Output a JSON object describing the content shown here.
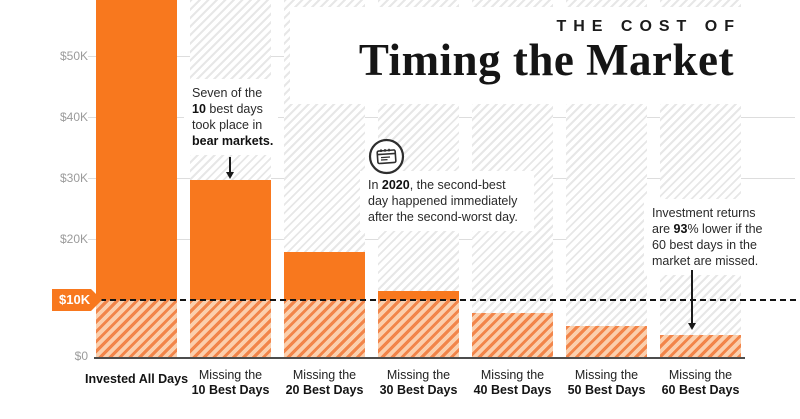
{
  "title": {
    "kicker": "THE COST OF",
    "main": "Timing the Market"
  },
  "chart_data": {
    "type": "bar",
    "title": "The Cost of Timing the Market",
    "categories": [
      "Invested All Days",
      "Missing the 10 Best Days",
      "Missing the 20 Best Days",
      "Missing the 30 Best Days",
      "Missing the 40 Best Days",
      "Missing the 50 Best Days",
      "Missing the 60 Best Days"
    ],
    "category_lines": [
      [
        "Invested All Days"
      ],
      [
        "Missing the",
        "10 Best Days"
      ],
      [
        "Missing the",
        "20 Best Days"
      ],
      [
        "Missing the",
        "30 Best Days"
      ],
      [
        "Missing the",
        "40 Best Days"
      ],
      [
        "Missing the",
        "50 Best Days"
      ],
      [
        "Missing the",
        "60 Best Days"
      ]
    ],
    "values": [
      65000,
      29700,
      17800,
      11500,
      7900,
      5700,
      4200
    ],
    "clipped_at_top": [
      true,
      false,
      false,
      false,
      false,
      false,
      false
    ],
    "ytick_values": [
      0,
      20000,
      30000,
      40000,
      50000
    ],
    "ytick_labels": [
      "$0",
      "$20K",
      "$30K",
      "$40K",
      "$50K"
    ],
    "ylim": [
      0,
      60000
    ],
    "baseline_value": 10000,
    "baseline_label": "$10K",
    "xlabel": "",
    "ylabel": "",
    "grid": "horizontal",
    "legend": "none"
  },
  "annotations": {
    "bear": {
      "lines": [
        [
          [
            "Seven of the",
            0
          ]
        ],
        [
          [
            "10",
            1
          ],
          [
            " best days",
            0
          ]
        ],
        [
          [
            "took place in",
            0
          ]
        ],
        [
          [
            "bear markets.",
            1
          ]
        ]
      ]
    },
    "covid": {
      "lines": [
        [
          [
            "In ",
            0
          ],
          [
            "2020",
            1
          ],
          [
            ", the second-best",
            0
          ]
        ],
        [
          [
            "day happened immediately",
            0
          ]
        ],
        [
          [
            "after the second-worst day.",
            0
          ]
        ]
      ]
    },
    "returns": {
      "lines": [
        [
          [
            "Investment returns",
            0
          ]
        ],
        [
          [
            "are ",
            0
          ],
          [
            "93",
            1
          ],
          [
            "% lower if the",
            0
          ]
        ],
        [
          [
            "60 best days in the",
            0
          ]
        ],
        [
          [
            "market are missed.",
            0
          ]
        ]
      ]
    }
  },
  "icons": {
    "note_icon": "newspaper-calendar-icon"
  },
  "colors": {
    "bar_orange": "#F8781E",
    "hatch_orange_dark": "#F2854A",
    "hatch_orange_light": "#FBCFAD",
    "hatch_gray": "#E7E7E7",
    "ink": "#1A1A1A",
    "tick_gray": "#9B9B9B",
    "axis_gray": "#4C4C4C"
  }
}
